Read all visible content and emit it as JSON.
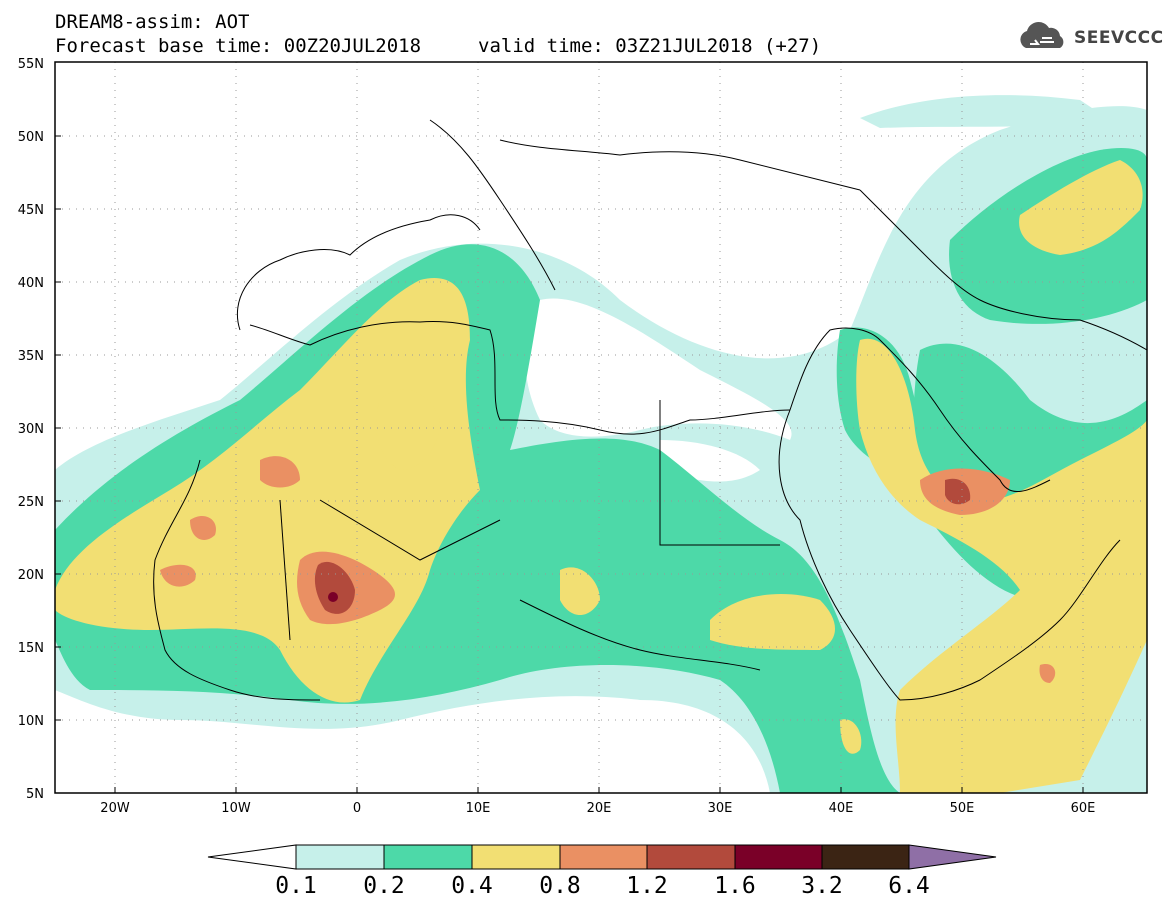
{
  "header": {
    "line1": "DREAM8-assim: AOT",
    "base_time": "Forecast base time: 00Z20JUL2018",
    "valid_time": "valid time: 03Z21JUL2018 (+27)"
  },
  "logo": {
    "text": "SEEVCCC",
    "icon": "cloud-icon"
  },
  "map": {
    "lon_range": [
      -25,
      65
    ],
    "lat_range": [
      5,
      55
    ],
    "lat_ticks": [
      "5N",
      "10N",
      "15N",
      "20N",
      "25N",
      "30N",
      "35N",
      "40N",
      "45N",
      "50N",
      "55N"
    ],
    "lon_ticks": [
      "20W",
      "10W",
      "0",
      "10E",
      "20E",
      "30E",
      "40E",
      "50E",
      "60E"
    ]
  },
  "colorbar": {
    "labels": [
      "0.1",
      "0.2",
      "0.4",
      "0.8",
      "1.2",
      "1.6",
      "3.2",
      "6.4"
    ],
    "colors": [
      "#ffffff",
      "#c6f0ea",
      "#4dd9a8",
      "#f2df73",
      "#ea9063",
      "#b24a3c",
      "#7a0028",
      "#3b2414",
      "#8f6fa6"
    ]
  }
}
